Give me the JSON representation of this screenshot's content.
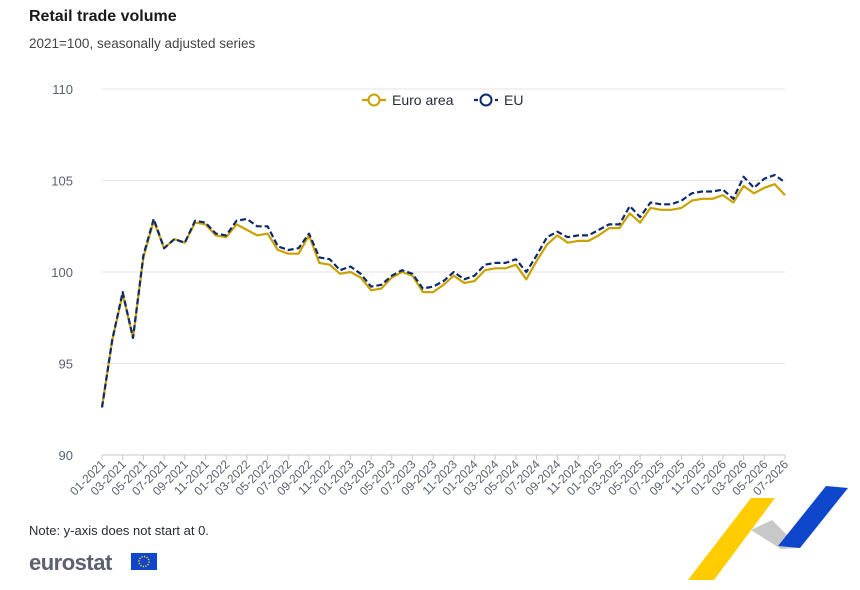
{
  "header": {
    "title": "Retail trade volume",
    "subtitle": "2021=100, seasonally adjusted series"
  },
  "footer": {
    "note": "Note: y-axis does not start at 0.",
    "logo_text": "eurostat"
  },
  "colors": {
    "euro_area": "#c9a200",
    "eu": "#0e2a6b",
    "grid": "#e6e6e6",
    "ribbon_yellow": "#ffcc00",
    "ribbon_blue": "#0e47cb",
    "ribbon_grey": "#c8c8c8"
  },
  "chart_data": {
    "type": "line",
    "title": "Retail trade volume",
    "subtitle": "2021=100, seasonally adjusted series",
    "xlabel": "",
    "ylabel": "",
    "ylim": [
      90,
      110
    ],
    "yticks": [
      90,
      95,
      100,
      105,
      110
    ],
    "grid": true,
    "legend_position": "top-center",
    "x_tick_labels": [
      "01-2021",
      "03-2021",
      "05-2021",
      "07-2021",
      "09-2021",
      "11-2021",
      "01-2022",
      "03-2022",
      "05-2022",
      "07-2022",
      "09-2022",
      "11-2022",
      "01-2023",
      "03-2023",
      "05-2023",
      "07-2023",
      "09-2023",
      "11-2023",
      "01-2024",
      "03-2024",
      "05-2024",
      "07-2024",
      "09-2024",
      "11-2024",
      "01-2025",
      "03-2025",
      "05-2025",
      "07-2025",
      "09-2025",
      "11-2025",
      "01-2026",
      "03-2026",
      "05-2026",
      "07-2026"
    ],
    "x": [
      "01-2021",
      "02-2021",
      "03-2021",
      "04-2021",
      "05-2021",
      "06-2021",
      "07-2021",
      "08-2021",
      "09-2021",
      "10-2021",
      "11-2021",
      "12-2021",
      "01-2022",
      "02-2022",
      "03-2022",
      "04-2022",
      "05-2022",
      "06-2022",
      "07-2022",
      "08-2022",
      "09-2022",
      "10-2022",
      "11-2022",
      "12-2022",
      "01-2023",
      "02-2023",
      "03-2023",
      "04-2023",
      "05-2023",
      "06-2023",
      "07-2023",
      "08-2023",
      "09-2023",
      "10-2023",
      "11-2023",
      "12-2023",
      "01-2024",
      "02-2024",
      "03-2024",
      "04-2024",
      "05-2024",
      "06-2024",
      "07-2024",
      "08-2024",
      "09-2024",
      "10-2024",
      "11-2024",
      "12-2024",
      "01-2025",
      "02-2025",
      "03-2025",
      "04-2025",
      "05-2025",
      "06-2025",
      "07-2025",
      "08-2025",
      "09-2025",
      "10-2025",
      "11-2025",
      "12-2025",
      "01-2026",
      "02-2026",
      "03-2026",
      "04-2026",
      "05-2026",
      "06-2026",
      "07-2026"
    ],
    "series": [
      {
        "name": "Euro area",
        "style": "solid",
        "marker": "circle",
        "values": [
          92.6,
          96.3,
          98.8,
          96.4,
          100.8,
          102.8,
          101.3,
          101.8,
          101.6,
          102.7,
          102.6,
          102.0,
          101.9,
          102.6,
          102.3,
          102.0,
          102.1,
          101.2,
          101.0,
          101.0,
          102.0,
          100.5,
          100.4,
          99.9,
          100.0,
          99.7,
          99.0,
          99.1,
          99.7,
          100.0,
          99.8,
          98.9,
          98.9,
          99.3,
          99.8,
          99.4,
          99.5,
          100.1,
          100.2,
          100.2,
          100.4,
          99.6,
          100.6,
          101.5,
          102.0,
          101.6,
          101.7,
          101.7,
          102.0,
          102.4,
          102.4,
          103.2,
          102.7,
          103.5,
          103.4,
          103.4,
          103.5,
          103.9,
          104.0,
          104.0,
          104.2,
          103.8,
          104.7,
          104.3,
          104.6,
          104.8,
          104.2
        ]
      },
      {
        "name": "EU",
        "style": "dashed",
        "marker": "circle",
        "values": [
          92.6,
          96.3,
          98.9,
          96.4,
          100.9,
          102.9,
          101.3,
          101.8,
          101.6,
          102.8,
          102.7,
          102.1,
          102.0,
          102.8,
          102.9,
          102.5,
          102.5,
          101.4,
          101.2,
          101.3,
          102.1,
          100.8,
          100.7,
          100.1,
          100.3,
          99.9,
          99.2,
          99.3,
          99.8,
          100.1,
          99.9,
          99.1,
          99.2,
          99.5,
          100.0,
          99.6,
          99.8,
          100.4,
          100.5,
          100.5,
          100.7,
          100.0,
          100.9,
          101.9,
          102.2,
          101.9,
          102.0,
          102.0,
          102.3,
          102.6,
          102.6,
          103.6,
          103.0,
          103.8,
          103.7,
          103.7,
          103.9,
          104.3,
          104.4,
          104.4,
          104.5,
          104.0,
          105.2,
          104.6,
          105.1,
          105.3,
          104.9
        ]
      }
    ]
  }
}
